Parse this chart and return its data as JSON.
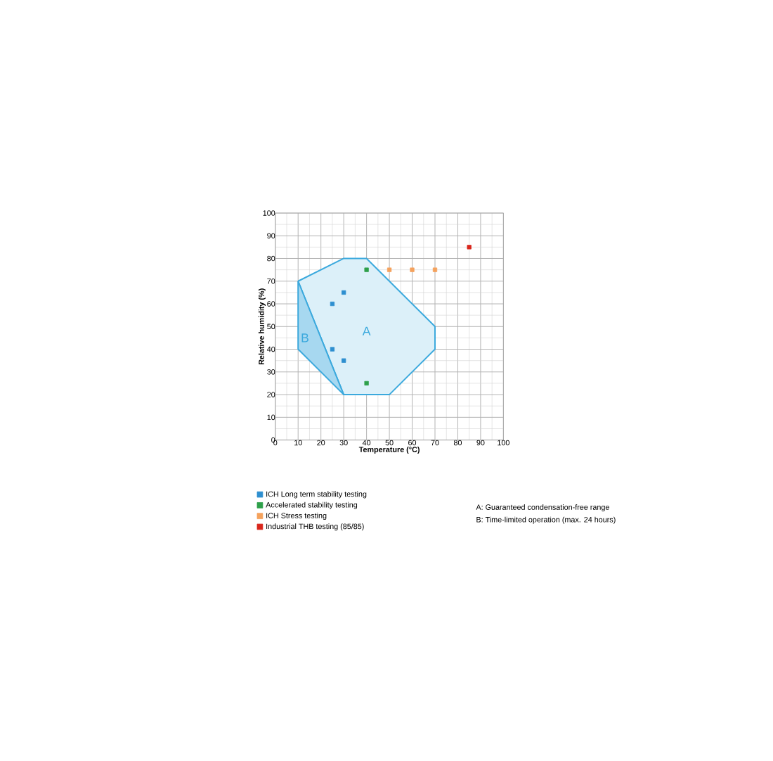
{
  "chart_data": {
    "type": "scatter",
    "xlabel": "Temperature (°C)",
    "ylabel": "Relative humidity (%)",
    "xlim": [
      0,
      100
    ],
    "ylim": [
      0,
      100
    ],
    "xticks": [
      0,
      10,
      20,
      30,
      40,
      50,
      60,
      70,
      80,
      90,
      100
    ],
    "yticks": [
      0,
      10,
      20,
      30,
      40,
      50,
      60,
      70,
      80,
      90,
      100
    ],
    "grid": true,
    "legend": "bottom",
    "marker": "square",
    "series": [
      {
        "type": "area",
        "marker": "none",
        "color": "#3ba9dd",
        "x": [
          10,
          30,
          40,
          70,
          70,
          50,
          30,
          10
        ],
        "values": [
          70,
          80,
          80,
          50,
          40,
          20,
          20,
          70
        ]
      },
      {
        "type": "area",
        "marker": "none",
        "color": "#3ba9dd",
        "x": [
          10,
          10,
          30,
          10
        ],
        "values": [
          70,
          40,
          20,
          70
        ]
      },
      {
        "name": "ICH Long term stability testing",
        "color": "#2e8fd0",
        "x": [
          25,
          30,
          25,
          30
        ],
        "values": [
          60,
          65,
          40,
          35
        ]
      },
      {
        "name": "Accelerated stability testing",
        "color": "#2ea04a",
        "x": [
          40,
          40
        ],
        "values": [
          75,
          25
        ]
      },
      {
        "name": "ICH Stress testing",
        "color": "#f5a25c",
        "x": [
          50,
          60,
          70
        ],
        "values": [
          75,
          75,
          75
        ]
      },
      {
        "name": "Industrial THB testing (85/85)",
        "color": "#d9261c",
        "x": [
          85
        ],
        "values": [
          85
        ]
      }
    ],
    "annotations": [
      "A",
      "B",
      "A: Guaranteed condensation-free range",
      "B: Time-limited operation (max. 24 hours)"
    ]
  }
}
